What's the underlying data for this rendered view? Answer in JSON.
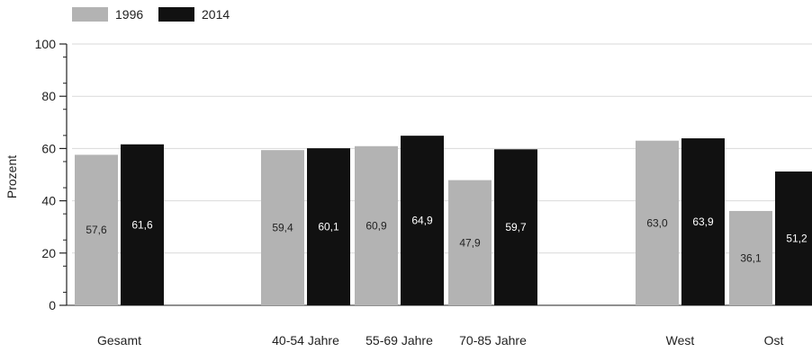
{
  "chart_data": {
    "type": "bar",
    "ylabel": "Prozent",
    "xlabel": "",
    "ylim": [
      0,
      100
    ],
    "yticks": [
      0,
      20,
      40,
      60,
      80,
      100
    ],
    "grid": true,
    "legend_position": "top-left",
    "categories": [
      "Gesamt",
      "40-54 Jahre",
      "55-69 Jahre",
      "70-85 Jahre",
      "West",
      "Ost"
    ],
    "series": [
      {
        "name": "1996",
        "color": "#b3b3b3",
        "label_color": "#222222",
        "values": [
          57.6,
          59.4,
          60.9,
          47.9,
          63.0,
          36.1
        ],
        "labels": [
          "57,6",
          "59,4",
          "60,9",
          "47,9",
          "63,0",
          "36,1"
        ]
      },
      {
        "name": "2014",
        "color": "#111111",
        "label_color": "#ffffff",
        "values": [
          61.6,
          60.1,
          64.9,
          59.7,
          63.9,
          51.2
        ],
        "labels": [
          "61,6",
          "60,1",
          "64,9",
          "59,7",
          "63,9",
          "51,2"
        ]
      }
    ]
  }
}
